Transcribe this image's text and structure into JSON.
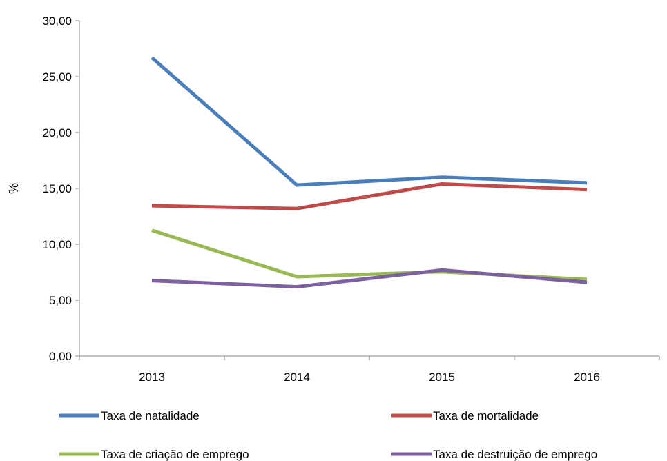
{
  "chart_data": {
    "type": "line",
    "x": [
      "2013",
      "2014",
      "2015",
      "2016"
    ],
    "ylabel": "%",
    "ylim": [
      0,
      30
    ],
    "yticks": [
      "0,00",
      "5,00",
      "10,00",
      "15,00",
      "20,00",
      "25,00",
      "30,00"
    ],
    "grid": false,
    "legend_position": "bottom",
    "series": [
      {
        "name": "Taxa de natalidade",
        "color": "#4a7ebb",
        "values": [
          26.7,
          15.3,
          16.0,
          15.5
        ]
      },
      {
        "name": "Taxa de mortalidade",
        "color": "#be4b48",
        "values": [
          13.45,
          13.2,
          15.4,
          14.9
        ]
      },
      {
        "name": "Taxa de criação de emprego",
        "color": "#98b954",
        "values": [
          11.25,
          7.1,
          7.55,
          6.85
        ]
      },
      {
        "name": "Taxa de destruição de emprego",
        "color": "#7d60a0",
        "values": [
          6.75,
          6.2,
          7.7,
          6.6
        ]
      }
    ]
  }
}
